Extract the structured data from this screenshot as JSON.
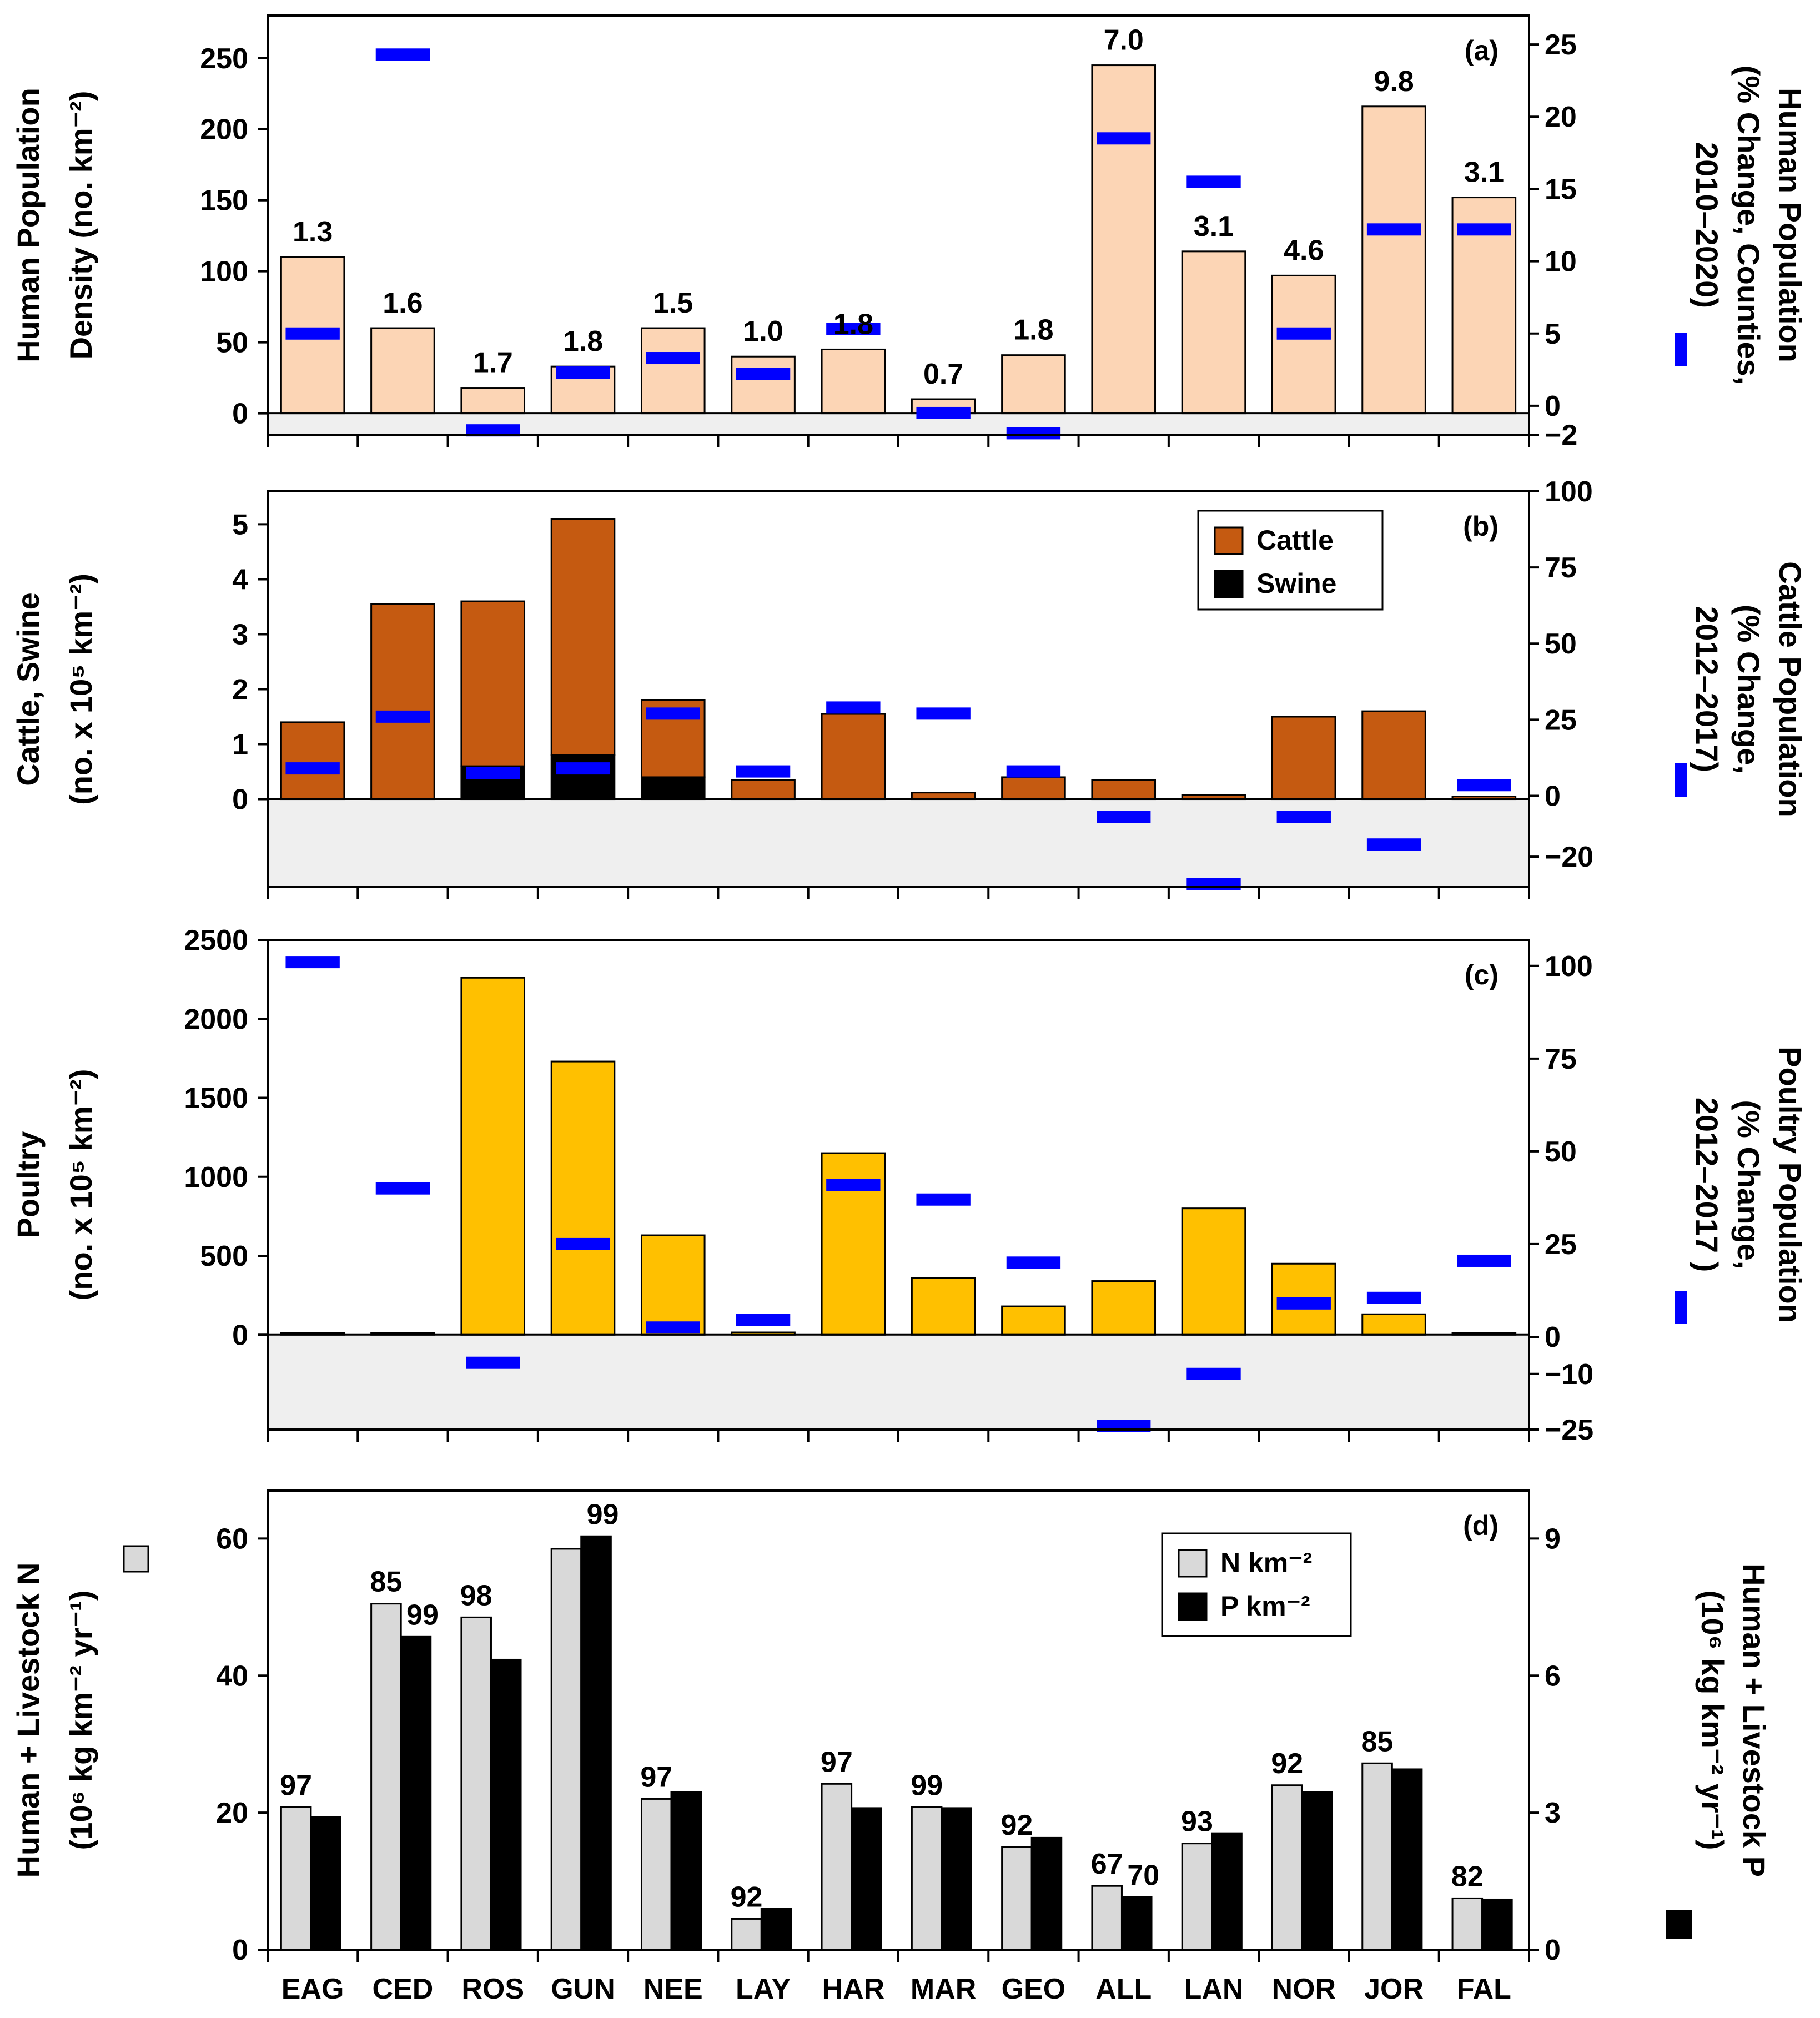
{
  "categories": [
    "EAG",
    "CED",
    "ROS",
    "GUN",
    "NEE",
    "LAY",
    "HAR",
    "MAR",
    "GEO",
    "ALL",
    "LAN",
    "NOR",
    "JOR",
    "FAL"
  ],
  "colors": {
    "human_bar": "#FCD5B5",
    "cattle": "#C55A11",
    "swine": "#000000",
    "poultry": "#FFC000",
    "marker": "#0000FF",
    "negative_band": "#EFEFEF",
    "n_bar": "#D9D9D9",
    "p_bar": "#000000"
  },
  "chart_data": [
    {
      "panel": "a",
      "type": "bar",
      "tag": "(a)",
      "left_axis": {
        "title_lines": [
          "Human Population",
          "Density (no. km⁻²)"
        ],
        "range": [
          -15,
          280
        ],
        "ticks": [
          0,
          50,
          100,
          150,
          200,
          250
        ],
        "tick_labels": [
          "0",
          "50",
          "100",
          "150",
          "200",
          "250"
        ]
      },
      "right_axis": {
        "title_lines": [
          "Human Population",
          "(% Change, Counties,",
          "2010–2020)"
        ],
        "range": [
          -2,
          27
        ],
        "ticks": [
          -2,
          0,
          5,
          10,
          15,
          20,
          25
        ],
        "tick_labels": [
          "−2",
          "0",
          "5",
          "10",
          "15",
          "20",
          "25"
        ]
      },
      "series": [
        {
          "name": "Human Population Density",
          "axis": "left",
          "style": "bar",
          "values": [
            110,
            60,
            18,
            33,
            60,
            40,
            45,
            10,
            41,
            245,
            114,
            97,
            216,
            152
          ]
        },
        {
          "name": "Human Population % Change",
          "axis": "right",
          "style": "marker",
          "values": [
            5,
            24.3,
            -1.7,
            2.3,
            3.3,
            2.2,
            5.3,
            -0.5,
            -1.9,
            18.5,
            15.5,
            5,
            12.2,
            12.2
          ]
        }
      ],
      "data_labels": [
        "1.3",
        "1.6",
        "1.7",
        "1.8",
        "1.5",
        "1.0",
        "1.8",
        "0.7",
        "1.8",
        "7.0",
        "3.1",
        "4.6",
        "9.8",
        "3.1"
      ]
    },
    {
      "panel": "b",
      "type": "bar",
      "tag": "(b)",
      "left_axis": {
        "title_lines": [
          "Cattle, Swine",
          "(no. x 10⁵ km⁻²)"
        ],
        "range": [
          -1.6,
          5.6
        ],
        "ticks": [
          0,
          1,
          2,
          3,
          4,
          5
        ],
        "tick_labels": [
          "0",
          "1",
          "2",
          "3",
          "4",
          "5"
        ]
      },
      "right_axis": {
        "title_lines": [
          "Cattle Population",
          "(% Change,",
          "2012–2017)"
        ],
        "range": [
          -30,
          100
        ],
        "ticks": [
          -20,
          0,
          25,
          50,
          75,
          100
        ],
        "tick_labels": [
          "−20",
          "0",
          "25",
          "50",
          "75",
          "100"
        ]
      },
      "legend": [
        "Cattle",
        "Swine"
      ],
      "series": [
        {
          "name": "Cattle",
          "axis": "left",
          "style": "stacked-bar",
          "values": [
            1.4,
            3.55,
            3.0,
            4.3,
            1.4,
            0.35,
            1.55,
            0.12,
            0.4,
            0.35,
            0.08,
            1.5,
            1.6,
            0.05
          ]
        },
        {
          "name": "Swine",
          "axis": "left",
          "style": "stacked-bar",
          "values": [
            0,
            0,
            0.6,
            0.8,
            0.4,
            0,
            0,
            0,
            0,
            0,
            0,
            0,
            0,
            0
          ]
        },
        {
          "name": "Cattle Population % Change",
          "axis": "right",
          "style": "marker",
          "values": [
            9,
            26,
            7.5,
            9,
            27,
            8,
            29,
            27,
            8,
            -7,
            -29,
            -7,
            -16,
            3.5
          ]
        }
      ]
    },
    {
      "panel": "c",
      "type": "bar",
      "tag": "(c)",
      "left_axis": {
        "title_lines": [
          "Poultry",
          "(no. x 10⁵ km⁻²)"
        ],
        "range": [
          -600,
          2500
        ],
        "ticks": [
          0,
          500,
          1000,
          1500,
          2000,
          2500
        ],
        "tick_labels": [
          "0",
          "500",
          "1000",
          "1500",
          "2000",
          "2500"
        ]
      },
      "right_axis": {
        "title_lines": [
          "Poultry Population",
          "(% Change,",
          "2012–2017 )"
        ],
        "range": [
          -25,
          107
        ],
        "ticks": [
          -25,
          -10,
          0,
          25,
          50,
          75,
          100
        ],
        "tick_labels": [
          "−25",
          "−10",
          "0",
          "25",
          "50",
          "75",
          "100"
        ]
      },
      "series": [
        {
          "name": "Poultry",
          "axis": "left",
          "style": "bar",
          "values": [
            10,
            10,
            2260,
            1730,
            630,
            15,
            1150,
            360,
            180,
            340,
            800,
            450,
            130,
            10
          ]
        },
        {
          "name": "Poultry Population % Change",
          "axis": "right",
          "style": "marker",
          "values": [
            101,
            40,
            -7,
            25,
            2.5,
            4.5,
            41,
            37,
            20,
            -24,
            -10,
            9,
            10.5,
            20.5
          ]
        }
      ]
    },
    {
      "panel": "d",
      "type": "bar",
      "tag": "(d)",
      "left_axis": {
        "title_lines": [
          "Human + Livestock N",
          "(10⁶ kg km⁻² yr⁻¹)"
        ],
        "range": [
          0,
          67
        ],
        "ticks": [
          0,
          20,
          40,
          60
        ],
        "tick_labels": [
          "0",
          "20",
          "40",
          "60"
        ]
      },
      "right_axis": {
        "title_lines": [
          "Human + Livestock P",
          "(10⁶ kg km⁻² yr⁻¹)"
        ],
        "range": [
          0,
          10.05
        ],
        "ticks": [
          0,
          3,
          6,
          9
        ],
        "tick_labels": [
          "0",
          "3",
          "6",
          "9"
        ]
      },
      "legend": [
        "N km⁻²",
        "P km⁻²"
      ],
      "series": [
        {
          "name": "N km⁻²",
          "axis": "left",
          "style": "grouped-bar",
          "values": [
            20.8,
            50.5,
            48.5,
            58.5,
            22,
            4.5,
            24.2,
            20.8,
            15,
            9.3,
            15.5,
            24,
            27.2,
            7.5
          ]
        },
        {
          "name": "P km⁻²",
          "axis": "right",
          "style": "grouped-bar",
          "values": [
            2.9,
            6.85,
            6.35,
            9.05,
            3.45,
            0.9,
            3.1,
            3.1,
            2.45,
            1.15,
            2.55,
            3.45,
            3.95,
            1.1
          ]
        }
      ],
      "n_labels": [
        "97",
        "85",
        "98",
        "",
        "97",
        "92",
        "97",
        "99",
        "92",
        "67",
        "93",
        "92",
        "85",
        "82"
      ],
      "p_labels": [
        "",
        "99",
        "",
        "99",
        "",
        "",
        "",
        "",
        "",
        "70",
        "",
        "",
        "",
        ""
      ]
    }
  ]
}
